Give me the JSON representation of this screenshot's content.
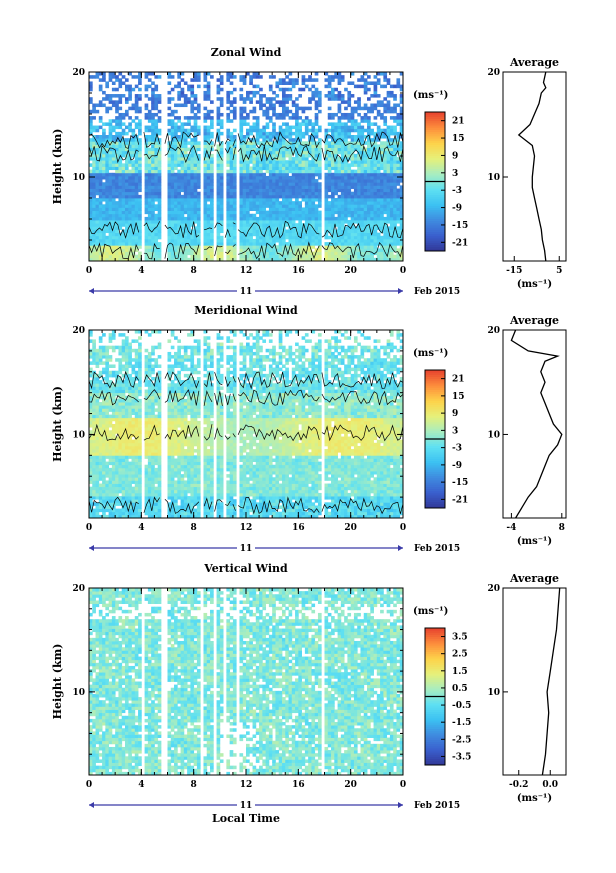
{
  "shared": {
    "ylabel": "Height (km)",
    "xlabel": "Local Time",
    "date_label": "Feb 2015",
    "day_label": "11",
    "units_label": "(ms⁻¹)",
    "avg_title": "Average"
  },
  "chart_data": [
    {
      "type": "heatmap",
      "title": "Zonal Wind",
      "variable": "zonal",
      "x_ticks": [
        "0",
        "4",
        "8",
        "12",
        "16",
        "20",
        "0"
      ],
      "x_range": [
        0,
        24
      ],
      "y_ticks": [
        "10",
        "20"
      ],
      "ylim": [
        2,
        20
      ],
      "colorbar": {
        "ticks": [
          "21",
          "15",
          "9",
          "3",
          "-3",
          "-9",
          "-15",
          "-21"
        ],
        "range": [
          -24,
          24
        ],
        "colormap": [
          "#313695",
          "#3a5fcd",
          "#3f8bdf",
          "#3cc1f2",
          "#5ee0f2",
          "#a8edc0",
          "#e6f07a",
          "#fdd34a",
          "#fd8d3c",
          "#e8432e"
        ]
      },
      "average": {
        "x_ticks": [
          "-15",
          "5"
        ],
        "xlim": [
          -20,
          8
        ],
        "y_ticks": [
          "10",
          "20"
        ],
        "profile": [
          [
            -1,
            2
          ],
          [
            -1.5,
            3
          ],
          [
            -2.5,
            4
          ],
          [
            -3,
            5
          ],
          [
            -4,
            6
          ],
          [
            -5,
            7
          ],
          [
            -6,
            8
          ],
          [
            -7,
            9
          ],
          [
            -7,
            10
          ],
          [
            -6.5,
            11
          ],
          [
            -6,
            12
          ],
          [
            -7,
            13
          ],
          [
            -13,
            14
          ],
          [
            -8,
            15
          ],
          [
            -6,
            16
          ],
          [
            -4,
            17
          ],
          [
            -3,
            18
          ],
          [
            -1,
            18.5
          ],
          [
            -2,
            19
          ],
          [
            -1,
            20
          ]
        ]
      }
    },
    {
      "type": "heatmap",
      "title": "Meridional Wind",
      "variable": "meridional",
      "x_ticks": [
        "0",
        "4",
        "8",
        "12",
        "16",
        "20",
        "0"
      ],
      "x_range": [
        0,
        24
      ],
      "y_ticks": [
        "10",
        "20"
      ],
      "ylim": [
        2,
        20
      ],
      "colorbar": {
        "ticks": [
          "21",
          "15",
          "9",
          "3",
          "-3",
          "-9",
          "-15",
          "-21"
        ],
        "range": [
          -24,
          24
        ],
        "colormap": [
          "#313695",
          "#3a5fcd",
          "#3f8bdf",
          "#3cc1f2",
          "#5ee0f2",
          "#a8edc0",
          "#e6f07a",
          "#fdd34a",
          "#fd8d3c",
          "#e8432e"
        ]
      },
      "average": {
        "x_ticks": [
          "-4",
          "8"
        ],
        "xlim": [
          -6,
          9
        ],
        "y_ticks": [
          "10",
          "20"
        ],
        "profile": [
          [
            -3,
            2
          ],
          [
            -1.5,
            3
          ],
          [
            0,
            4
          ],
          [
            2,
            5
          ],
          [
            3,
            6
          ],
          [
            4,
            7
          ],
          [
            5,
            8
          ],
          [
            7,
            9
          ],
          [
            8,
            10
          ],
          [
            6,
            11
          ],
          [
            5,
            12
          ],
          [
            4,
            13
          ],
          [
            3,
            14
          ],
          [
            4,
            15
          ],
          [
            3,
            16
          ],
          [
            4,
            17
          ],
          [
            7,
            17.5
          ],
          [
            0,
            18
          ],
          [
            -4,
            19
          ],
          [
            -3,
            20
          ]
        ]
      }
    },
    {
      "type": "heatmap",
      "title": "Vertical Wind",
      "variable": "vertical",
      "x_ticks": [
        "0",
        "4",
        "8",
        "12",
        "16",
        "20",
        "0"
      ],
      "x_range": [
        0,
        24
      ],
      "y_ticks": [
        "10",
        "20"
      ],
      "ylim": [
        2,
        20
      ],
      "colorbar": {
        "ticks": [
          "3.5",
          "2.5",
          "1.5",
          "0.5",
          "-0.5",
          "-1.5",
          "-2.5",
          "-3.5"
        ],
        "range": [
          -4,
          4
        ],
        "colormap": [
          "#313695",
          "#3a5fcd",
          "#3f8bdf",
          "#3cc1f2",
          "#5ee0f2",
          "#a8edc0",
          "#e6f07a",
          "#fdd34a",
          "#fd8d3c",
          "#e8432e"
        ]
      },
      "average": {
        "x_ticks": [
          "-0.2",
          "0.0"
        ],
        "xlim": [
          -0.3,
          0.1
        ],
        "y_ticks": [
          "10",
          "20"
        ],
        "profile": [
          [
            -0.05,
            2
          ],
          [
            -0.03,
            4
          ],
          [
            -0.02,
            6
          ],
          [
            -0.01,
            8
          ],
          [
            -0.02,
            10
          ],
          [
            0.0,
            12
          ],
          [
            0.02,
            14
          ],
          [
            0.04,
            16
          ],
          [
            0.05,
            18
          ],
          [
            0.06,
            20
          ]
        ]
      }
    }
  ]
}
